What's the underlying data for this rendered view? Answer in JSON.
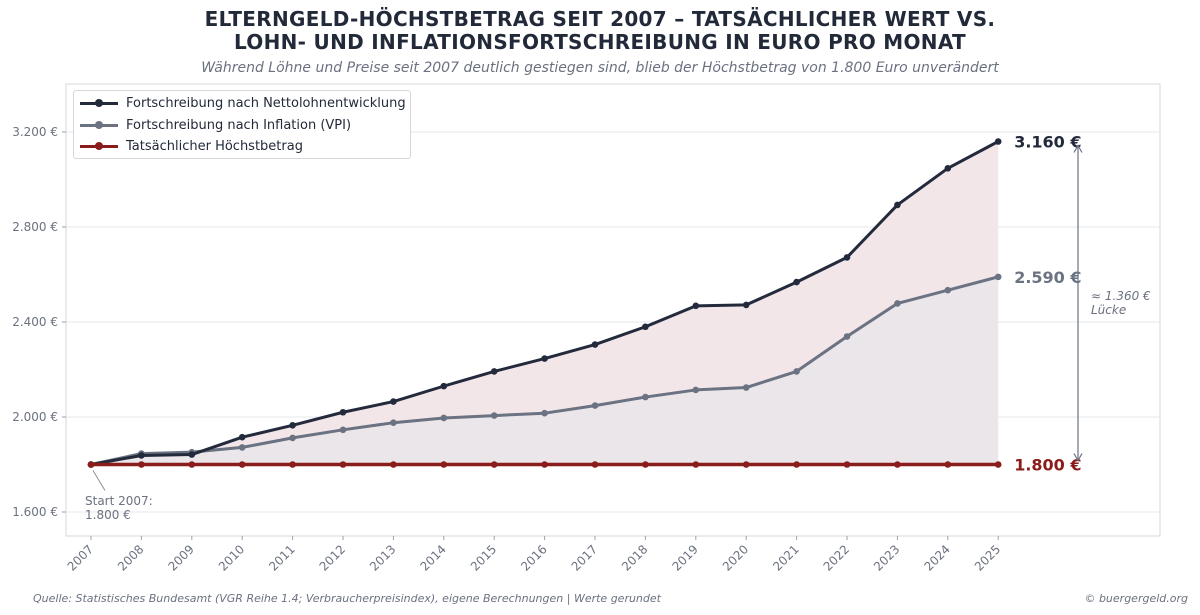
{
  "title_line1": "ELTERNGELD-HÖCHSTBETRAG SEIT 2007 – TATSÄCHLICHER WERT VS.",
  "title_line2": "LOHN- UND INFLATIONSFORTSCHREIBUNG IN EURO PRO MONAT",
  "subtitle": "Während Löhne und Preise seit 2007 deutlich gestiegen sind, blieb der Höchstbetrag von 1.800 Euro unverändert",
  "footer_source": "Quelle: Statistisches Bundesamt (VGR Reihe 1.4; Verbraucherpreisindex), eigene Berechnungen | Werte gerundet",
  "footer_brand": "© buergergeld.org",
  "colors": {
    "netto": "#232a3c",
    "vpi": "#6b7282",
    "actual": "#8b1c1c",
    "fill_upper": "#f3e6e9",
    "fill_lower": "#ebe6ea",
    "grid": "#e6e7ea",
    "tick": "#6b7180"
  },
  "chart_data": {
    "type": "line",
    "x": [
      "2007",
      "2008",
      "2009",
      "2010",
      "2011",
      "2012",
      "2013",
      "2014",
      "2015",
      "2016",
      "2017",
      "2018",
      "2019",
      "2020",
      "2021",
      "2022",
      "2023",
      "2024",
      "2025"
    ],
    "series": [
      {
        "name": "Fortschreibung nach Nettolohnentwicklung",
        "values": [
          1800,
          1838,
          1842,
          1915,
          1965,
          2020,
          2065,
          2130,
          2192,
          2246,
          2305,
          2380,
          2468,
          2472,
          2568,
          2672,
          2893,
          3047,
          3160
        ]
      },
      {
        "name": "Fortschreibung nach Inflation (VPI)",
        "values": [
          1800,
          1846,
          1852,
          1872,
          1912,
          1946,
          1976,
          1996,
          2006,
          2016,
          2048,
          2084,
          2114,
          2124,
          2192,
          2339,
          2478,
          2534,
          2590
        ]
      },
      {
        "name": "Tatsächlicher Höchstbetrag",
        "values": [
          1800,
          1800,
          1800,
          1800,
          1800,
          1800,
          1800,
          1800,
          1800,
          1800,
          1800,
          1800,
          1800,
          1800,
          1800,
          1800,
          1800,
          1800,
          1800
        ]
      }
    ],
    "yticks": [
      1600,
      2000,
      2400,
      2800,
      3200
    ],
    "ytick_labels": [
      "1.600 €",
      "2.000 €",
      "2.400 €",
      "2.800 €",
      "3.200 €"
    ],
    "ylim": [
      1500,
      3400
    ],
    "grid": true,
    "legend_position": "top-left",
    "end_labels": [
      "3.160 €",
      "2.590 €",
      "1.800 €"
    ],
    "annotations": {
      "start_line1": "Start 2007:",
      "start_line2": "1.800 €",
      "gap_line1": "≈ 1.360 €",
      "gap_line2": "Lücke"
    }
  }
}
